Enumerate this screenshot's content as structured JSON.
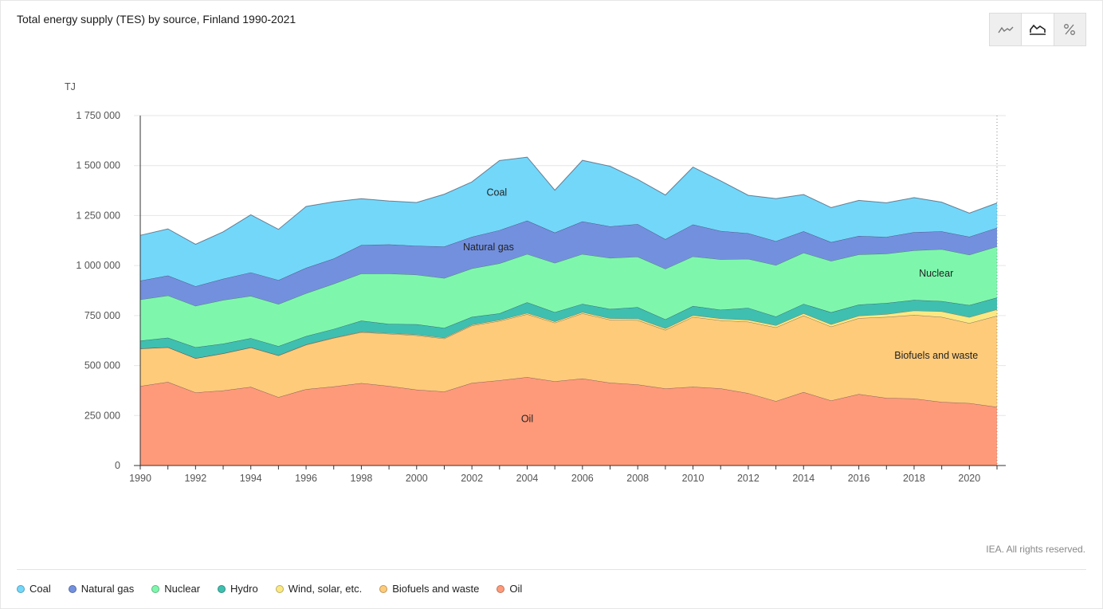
{
  "title": "Total energy supply (TES) by source, Finland 1990-2021",
  "credit": "IEA. All rights reserved.",
  "view_toggle": [
    {
      "name": "line-chart-icon",
      "active": false
    },
    {
      "name": "area-chart-icon",
      "active": true
    },
    {
      "name": "percent-icon",
      "active": false
    }
  ],
  "colors": {
    "Coal": "#73d7fa",
    "Natural gas": "#7390df",
    "Nuclear": "#7ef7ad",
    "Hydro": "#3fbfb0",
    "Wind, solar, etc.": "#fbe882",
    "Biofuels and waste": "#fecb7a",
    "Oil": "#fe9a7a"
  },
  "chart_data": {
    "type": "area",
    "stacked": true,
    "ylabel": "TJ",
    "ylim": [
      0,
      1750000
    ],
    "yticks": [
      0,
      250000,
      500000,
      750000,
      1000000,
      1250000,
      1500000,
      1750000
    ],
    "ytick_labels": [
      "0",
      "250 000",
      "500 000",
      "750 000",
      "1 000 000",
      "1 250 000",
      "1 500 000",
      "1 750 000"
    ],
    "xticks": [
      1990,
      1992,
      1994,
      1996,
      1998,
      2000,
      2002,
      2004,
      2006,
      2008,
      2010,
      2012,
      2014,
      2016,
      2018,
      2020
    ],
    "x": [
      1990,
      1991,
      1992,
      1993,
      1994,
      1995,
      1996,
      1997,
      1998,
      1999,
      2000,
      2001,
      2002,
      2003,
      2004,
      2005,
      2006,
      2007,
      2008,
      2009,
      2010,
      2011,
      2012,
      2013,
      2014,
      2015,
      2016,
      2017,
      2018,
      2019,
      2020,
      2021
    ],
    "grid": true,
    "series": [
      {
        "name": "Oil",
        "values": [
          397000,
          418000,
          365000,
          375000,
          393000,
          342000,
          382000,
          395000,
          412000,
          398000,
          379000,
          370000,
          413000,
          426000,
          442000,
          421000,
          435000,
          414000,
          405000,
          385000,
          394000,
          386000,
          362000,
          322000,
          367000,
          325000,
          357000,
          338000,
          335000,
          318000,
          312000,
          293000
        ]
      },
      {
        "name": "Biofuels and waste",
        "values": [
          188000,
          173000,
          171000,
          185000,
          197000,
          208000,
          222000,
          243000,
          255000,
          261000,
          272000,
          265000,
          287000,
          297000,
          315000,
          293000,
          326000,
          315000,
          322000,
          293000,
          349000,
          340000,
          357000,
          369000,
          383000,
          370000,
          380000,
          405000,
          418000,
          425000,
          400000,
          456000
        ]
      },
      {
        "name": "Wind, solar, etc.",
        "values": [
          300,
          400,
          500,
          700,
          1000,
          1200,
          1500,
          2000,
          2500,
          3000,
          3500,
          4000,
          4500,
          5000,
          5500,
          6000,
          6500,
          7000,
          7500,
          8000,
          8500,
          9000,
          9500,
          10000,
          10500,
          11000,
          12000,
          14000,
          22000,
          28000,
          30000,
          32000
        ]
      },
      {
        "name": "Hydro",
        "values": [
          39000,
          48000,
          55000,
          49000,
          46000,
          46000,
          42000,
          43000,
          55000,
          46000,
          52000,
          49000,
          39000,
          33000,
          54000,
          47000,
          41000,
          47000,
          57000,
          45000,
          46000,
          44000,
          60000,
          44000,
          48000,
          60000,
          56000,
          56000,
          53000,
          51000,
          60000,
          59000
        ]
      },
      {
        "name": "Nuclear",
        "values": [
          206000,
          211000,
          207000,
          218000,
          211000,
          210000,
          214000,
          226000,
          236000,
          252000,
          248000,
          249000,
          242000,
          250000,
          241000,
          246000,
          249000,
          255000,
          253000,
          253000,
          248000,
          252000,
          245000,
          257000,
          256000,
          257000,
          250000,
          246000,
          248000,
          260000,
          252000,
          256000
        ]
      },
      {
        "name": "Natural gas",
        "values": [
          94000,
          100000,
          98000,
          106000,
          118000,
          120000,
          127000,
          126000,
          142000,
          146000,
          144000,
          158000,
          158000,
          166000,
          167000,
          152000,
          163000,
          158000,
          163000,
          148000,
          160000,
          142000,
          128000,
          120000,
          107000,
          94000,
          93000,
          84000,
          91000,
          89000,
          90000,
          93000
        ]
      },
      {
        "name": "Coal",
        "values": [
          227000,
          233000,
          210000,
          235000,
          288000,
          254000,
          307000,
          284000,
          232000,
          217000,
          217000,
          262000,
          275000,
          348000,
          318000,
          212000,
          306000,
          301000,
          223000,
          221000,
          287000,
          251000,
          190000,
          213000,
          184000,
          173000,
          178000,
          171000,
          173000,
          146000,
          118000,
          124000
        ]
      }
    ],
    "annotations": [
      {
        "label": "Coal",
        "year": 2002.9,
        "value": 1350000
      },
      {
        "label": "Natural gas",
        "year": 2002.6,
        "value": 1077000
      },
      {
        "label": "Nuclear",
        "year": 2018.8,
        "value": 945000
      },
      {
        "label": "Biofuels and waste",
        "year": 2018.8,
        "value": 535000
      },
      {
        "label": "Oil",
        "year": 2004,
        "value": 218000
      }
    ],
    "legend": [
      "Coal",
      "Natural gas",
      "Nuclear",
      "Hydro",
      "Wind, solar, etc.",
      "Biofuels and waste",
      "Oil"
    ],
    "legend_position": "bottom"
  }
}
